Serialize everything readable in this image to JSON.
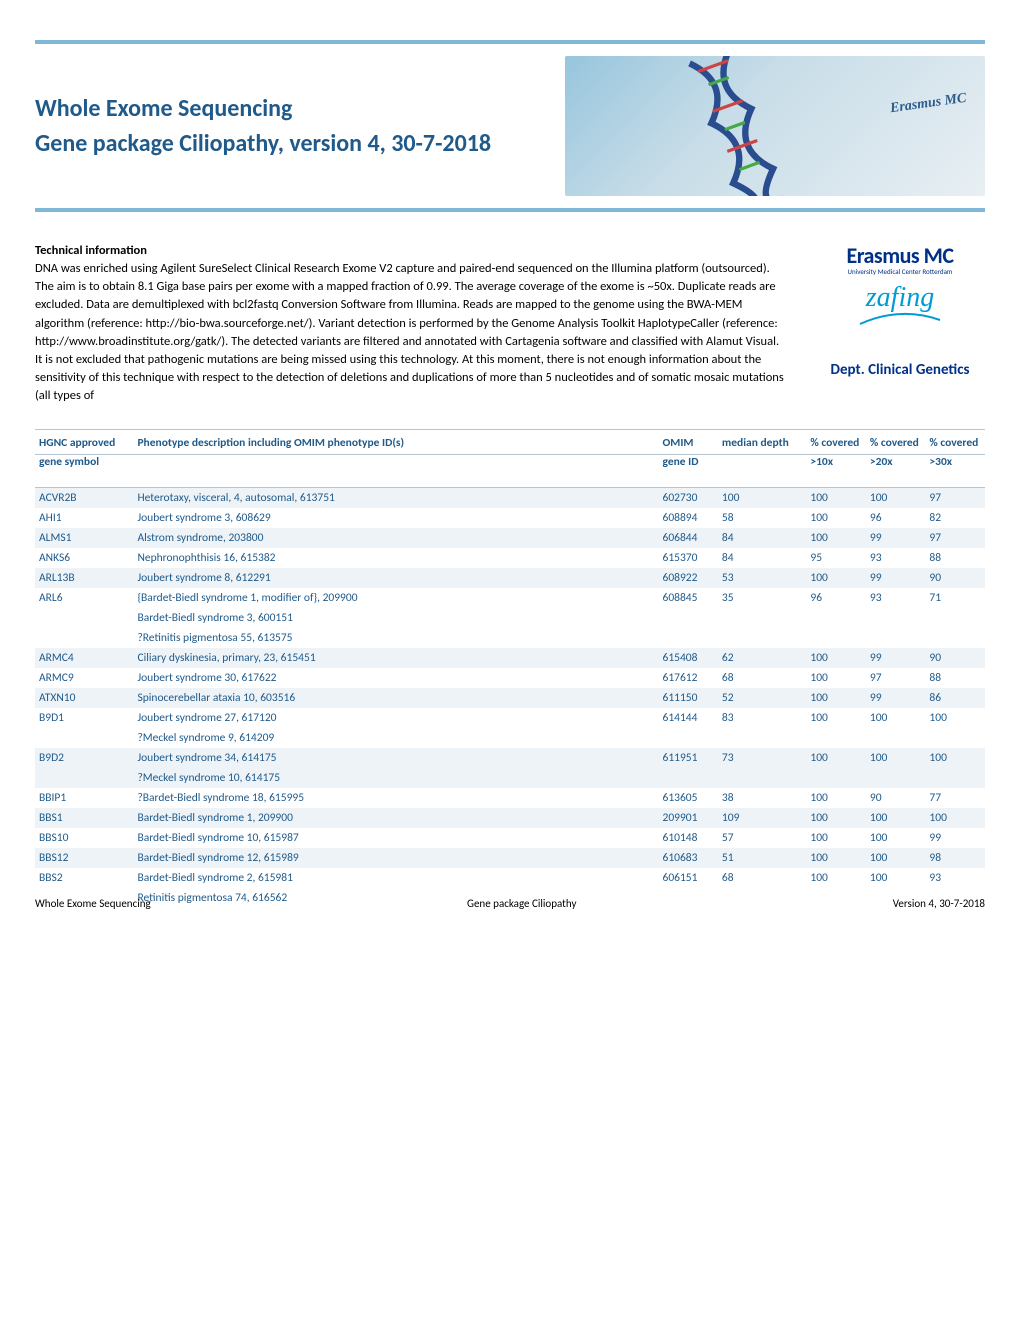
{
  "header": {
    "title_line1": "Whole Exome Sequencing",
    "title_line2": "Gene package Ciliopathy, version 4, 30-7-2018",
    "banner_text": "Erasmus MC",
    "title_color": "#1f5a8a",
    "band_color": "#7fb8d6"
  },
  "tech": {
    "heading": "Technical information",
    "body": "DNA was enriched using Agilent SureSelect Clinical Research Exome V2 capture and paired-end sequenced on the Illumina platform (outsourced). The aim is to obtain 8.1 Giga base pairs per exome with a mapped fraction of 0.99. The average coverage of the exome is ~50x. Duplicate reads are excluded. Data are demultiplexed with bcl2fastq Conversion Software from Illumina. Reads are mapped to the genome using the BWA-MEM algorithm (reference: http://bio-bwa.sourceforge.net/). Variant detection is performed by the Genome Analysis Toolkit HaplotypeCaller (reference: http://www.broadinstitute.org/gatk/). The detected variants are filtered and annotated with Cartagenia software and classified with Alamut Visual. It is not excluded that pathogenic mutations are being missed using this technology. At this moment, there is not enough information about the sensitivity of this technique with respect to the detection of deletions and duplications of more than 5 nucleotides and of somatic mosaic mutations (all types of"
  },
  "logo": {
    "name": "Erasmus MC",
    "sub": "University Medical Center Rotterdam",
    "signature": "zafing",
    "dept": "Dept. Clinical Genetics",
    "name_color": "#003087",
    "sig_color": "#009bd4"
  },
  "table": {
    "header_color": "#1f5a8a",
    "shade_color": "#edf3f7",
    "columns": {
      "gene_l1": "HGNC approved",
      "gene_l2": "gene symbol",
      "pheno_l1": "Phenotype description including OMIM phenotype ID(s)",
      "pheno_l2": "",
      "omim_l1": "OMIM",
      "omim_l2": "gene ID",
      "depth_l1": "median depth",
      "depth_l2": "",
      "c10_l1": "% covered",
      "c10_l2": ">10x",
      "c20_l1": "% covered",
      "c20_l2": ">20x",
      "c30_l1": "% covered",
      "c30_l2": ">30x"
    },
    "rows": [
      {
        "shade": true,
        "gene": "ACVR2B",
        "pheno": [
          "Heterotaxy, visceral, 4, autosomal, 613751"
        ],
        "omim": "602730",
        "depth": "100",
        "c10": "100",
        "c20": "100",
        "c30": "97"
      },
      {
        "shade": false,
        "gene": "AHI1",
        "pheno": [
          "Joubert syndrome 3, 608629"
        ],
        "omim": "608894",
        "depth": "58",
        "c10": "100",
        "c20": "96",
        "c30": "82"
      },
      {
        "shade": true,
        "gene": "ALMS1",
        "pheno": [
          "Alstrom syndrome, 203800"
        ],
        "omim": "606844",
        "depth": "84",
        "c10": "100",
        "c20": "99",
        "c30": "97"
      },
      {
        "shade": false,
        "gene": "ANKS6",
        "pheno": [
          "Nephronophthisis 16, 615382"
        ],
        "omim": "615370",
        "depth": "84",
        "c10": "95",
        "c20": "93",
        "c30": "88"
      },
      {
        "shade": true,
        "gene": "ARL13B",
        "pheno": [
          "Joubert syndrome 8, 612291"
        ],
        "omim": "608922",
        "depth": "53",
        "c10": "100",
        "c20": "99",
        "c30": "90"
      },
      {
        "shade": false,
        "gene": "ARL6",
        "pheno": [
          "{Bardet-Biedl syndrome 1, modifier of}, 209900",
          "Bardet-Biedl syndrome 3, 600151",
          "?Retinitis pigmentosa 55, 613575"
        ],
        "omim": "608845",
        "depth": "35",
        "c10": "96",
        "c20": "93",
        "c30": "71"
      },
      {
        "shade": true,
        "gene": "ARMC4",
        "pheno": [
          "Ciliary dyskinesia, primary, 23, 615451"
        ],
        "omim": "615408",
        "depth": "62",
        "c10": "100",
        "c20": "99",
        "c30": "90"
      },
      {
        "shade": false,
        "gene": "ARMC9",
        "pheno": [
          "Joubert syndrome 30, 617622"
        ],
        "omim": "617612",
        "depth": "68",
        "c10": "100",
        "c20": "97",
        "c30": "88"
      },
      {
        "shade": true,
        "gene": "ATXN10",
        "pheno": [
          "Spinocerebellar ataxia 10, 603516"
        ],
        "omim": "611150",
        "depth": "52",
        "c10": "100",
        "c20": "99",
        "c30": "86"
      },
      {
        "shade": false,
        "gene": "B9D1",
        "pheno": [
          "Joubert syndrome 27, 617120",
          "?Meckel syndrome 9, 614209"
        ],
        "omim": "614144",
        "depth": "83",
        "c10": "100",
        "c20": "100",
        "c30": "100"
      },
      {
        "shade": true,
        "gene": "B9D2",
        "pheno": [
          "Joubert syndrome 34, 614175",
          "?Meckel syndrome 10, 614175"
        ],
        "omim": "611951",
        "depth": "73",
        "c10": "100",
        "c20": "100",
        "c30": "100"
      },
      {
        "shade": false,
        "gene": "BBIP1",
        "pheno": [
          "?Bardet-Biedl syndrome 18, 615995"
        ],
        "omim": "613605",
        "depth": "38",
        "c10": "100",
        "c20": "90",
        "c30": "77"
      },
      {
        "shade": true,
        "gene": "BBS1",
        "pheno": [
          "Bardet-Biedl syndrome 1, 209900"
        ],
        "omim": "209901",
        "depth": "109",
        "c10": "100",
        "c20": "100",
        "c30": "100"
      },
      {
        "shade": false,
        "gene": "BBS10",
        "pheno": [
          "Bardet-Biedl syndrome 10, 615987"
        ],
        "omim": "610148",
        "depth": "57",
        "c10": "100",
        "c20": "100",
        "c30": "99"
      },
      {
        "shade": true,
        "gene": "BBS12",
        "pheno": [
          "Bardet-Biedl syndrome 12, 615989"
        ],
        "omim": "610683",
        "depth": "51",
        "c10": "100",
        "c20": "100",
        "c30": "98"
      },
      {
        "shade": false,
        "gene": "BBS2",
        "pheno": [
          "Bardet-Biedl syndrome 2, 615981",
          "Retinitis pigmentosa 74, 616562"
        ],
        "omim": "606151",
        "depth": "68",
        "c10": "100",
        "c20": "100",
        "c30": "93"
      }
    ]
  },
  "footer": {
    "left": "Whole Exome Sequencing",
    "center": "Gene package Ciliopathy",
    "right": "Version 4, 30-7-2018"
  }
}
